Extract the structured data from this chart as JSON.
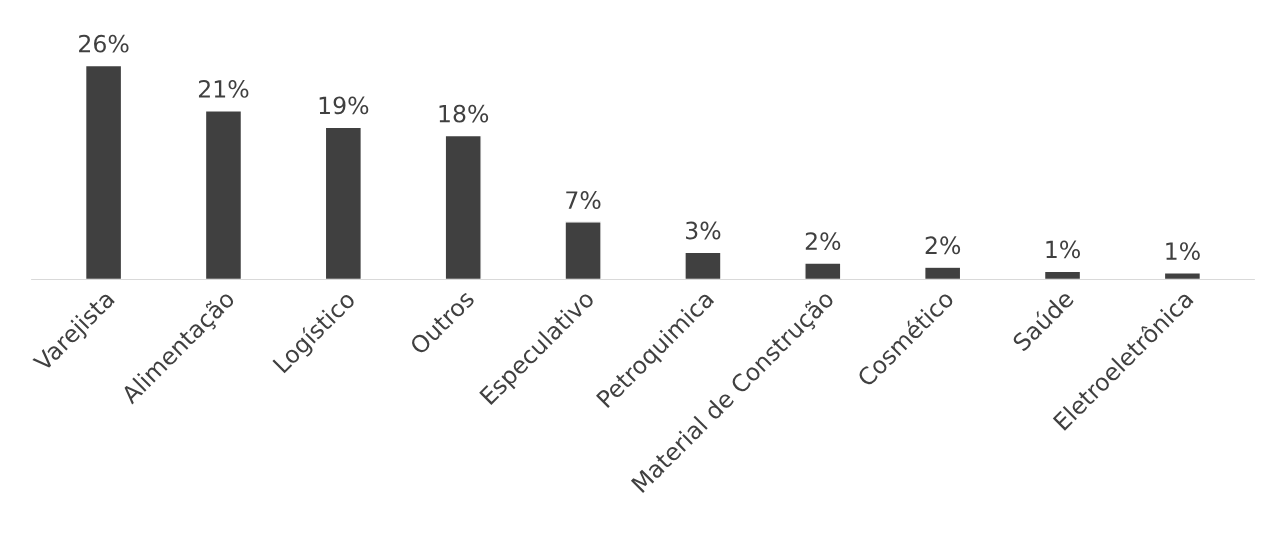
{
  "chart_data": {
    "type": "bar",
    "categories": [
      "Varejista",
      "Alimentação",
      "Logístico",
      "Outros",
      "Especulativo",
      "Petroquimica",
      "Material de Construção",
      "Cosmético",
      "Saúde",
      "Eletroeletrônica"
    ],
    "values": [
      26,
      20.5,
      18.5,
      17.5,
      7,
      3.3,
      2,
      1.5,
      1,
      0.8
    ],
    "value_labels": [
      "26%",
      "21%",
      "19%",
      "18%",
      "7%",
      "3%",
      "2%",
      "2%",
      "1%",
      "1%"
    ],
    "color": "#404040",
    "grid": false,
    "legend": false
  }
}
